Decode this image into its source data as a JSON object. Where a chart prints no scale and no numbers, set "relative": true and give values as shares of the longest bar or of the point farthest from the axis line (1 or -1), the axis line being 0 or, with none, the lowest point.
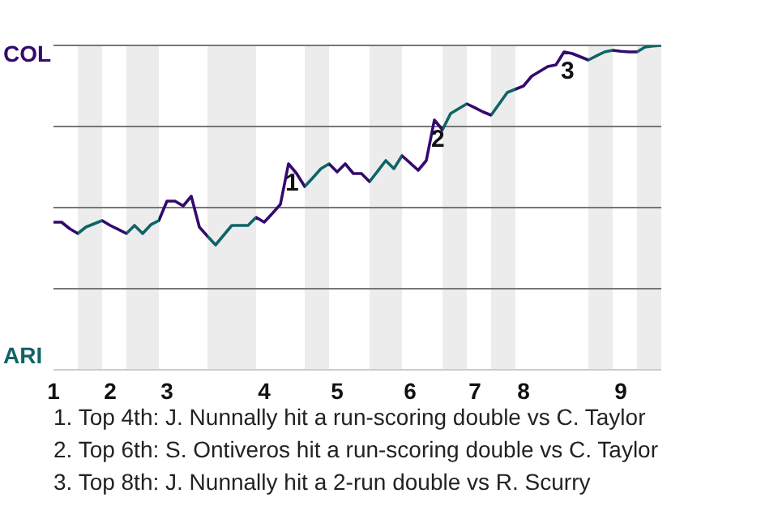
{
  "chart_data": {
    "type": "line",
    "relative": true,
    "categories": [
      "1",
      null,
      null,
      null,
      null,
      null,
      null,
      "2",
      null,
      null,
      null,
      null,
      null,
      null,
      "3",
      null,
      null,
      null,
      null,
      null,
      null,
      null,
      null,
      null,
      null,
      null,
      "4",
      null,
      null,
      null,
      null,
      null,
      null,
      null,
      null,
      "5",
      null,
      null,
      null,
      null,
      null,
      null,
      null,
      null,
      "6",
      null,
      null,
      null,
      null,
      null,
      null,
      null,
      "7",
      null,
      null,
      null,
      null,
      null,
      "8",
      null,
      null,
      null,
      null,
      null,
      null,
      null,
      null,
      null,
      null,
      null,
      "9",
      null,
      null,
      null,
      null,
      null
    ],
    "grid": "y",
    "series": [
      {
        "color": "#330a6e",
        "values": [
          0.455,
          0.455,
          0.435,
          0.42,
          0.44,
          0.45,
          0.46,
          0.445,
          0.433,
          0.42,
          0.445,
          0.42,
          0.447,
          0.46,
          0.52,
          0.52,
          0.505,
          0.535,
          0.44,
          0.412,
          0.385,
          0.415,
          0.445,
          0.445,
          0.445,
          0.47,
          0.455,
          0.482,
          0.51,
          0.635,
          0.605,
          0.565,
          0.592,
          0.62,
          0.635,
          0.61,
          0.635,
          0.605,
          0.605,
          0.58,
          0.612,
          0.645,
          0.62,
          0.66,
          0.638,
          0.615,
          0.645,
          0.77,
          0.74,
          0.79,
          0.805,
          0.82,
          0.808,
          0.795,
          0.785,
          0.82,
          0.855,
          0.865,
          0.875,
          0.905,
          0.92,
          0.935,
          0.94,
          0.98,
          0.975,
          0.965,
          0.955,
          0.968,
          0.98,
          0.985,
          0.982,
          0.98,
          0.98,
          0.995,
          0.998,
          1
        ],
        "colors": [
          "#330a6e",
          "#330a6e",
          "#330a6e",
          "#0e6466",
          "#0e6466",
          "#0e6466",
          "#330a6e",
          "#330a6e",
          "#330a6e",
          "#0e6466",
          "#0e6466",
          "#0e6466",
          "#0e6466",
          "#330a6e",
          "#330a6e",
          "#330a6e",
          "#330a6e",
          "#330a6e",
          "#330a6e",
          "#0e6466",
          "#0e6466",
          "#0e6466",
          "#0e6466",
          "#0e6466",
          "#0e6466",
          "#330a6e",
          "#330a6e",
          "#330a6e",
          "#330a6e",
          "#330a6e",
          "#330a6e",
          "#0e6466",
          "#0e6466",
          "#0e6466",
          "#330a6e",
          "#330a6e",
          "#330a6e",
          "#330a6e",
          "#330a6e",
          "#0e6466",
          "#0e6466",
          "#0e6466",
          "#0e6466",
          "#330a6e",
          "#330a6e",
          "#330a6e",
          "#330a6e",
          "#330a6e",
          "#0e6466",
          "#0e6466",
          "#0e6466",
          "#330a6e",
          "#330a6e",
          "#330a6e",
          "#0e6466",
          "#0e6466",
          "#0e6466",
          "#330a6e",
          "#330a6e",
          "#330a6e",
          "#330a6e",
          "#330a6e",
          "#330a6e",
          "#330a6e",
          "#330a6e",
          "#330a6e",
          "#0e6466",
          "#0e6466",
          "#0e6466",
          "#330a6e",
          "#330a6e",
          "#330a6e",
          "#0e6466",
          "#0e6466",
          "#0e6466",
          "#0e6466"
        ]
      }
    ],
    "annotations": [
      "COL",
      "ARI",
      {
        "text": "1",
        "y": 0.635
      },
      {
        "text": "2",
        "y": 0.77
      },
      {
        "text": "3",
        "y": 0.98
      },
      "1. Top 4th: J. Nunnally hit a run-scoring double vs C. Taylor",
      "2. Top 6th: S. Ontiveros hit a run-scoring double vs C. Taylor",
      "3. Top 8th: J. Nunnally hit a 2-run double vs R. Scurry"
    ]
  }
}
